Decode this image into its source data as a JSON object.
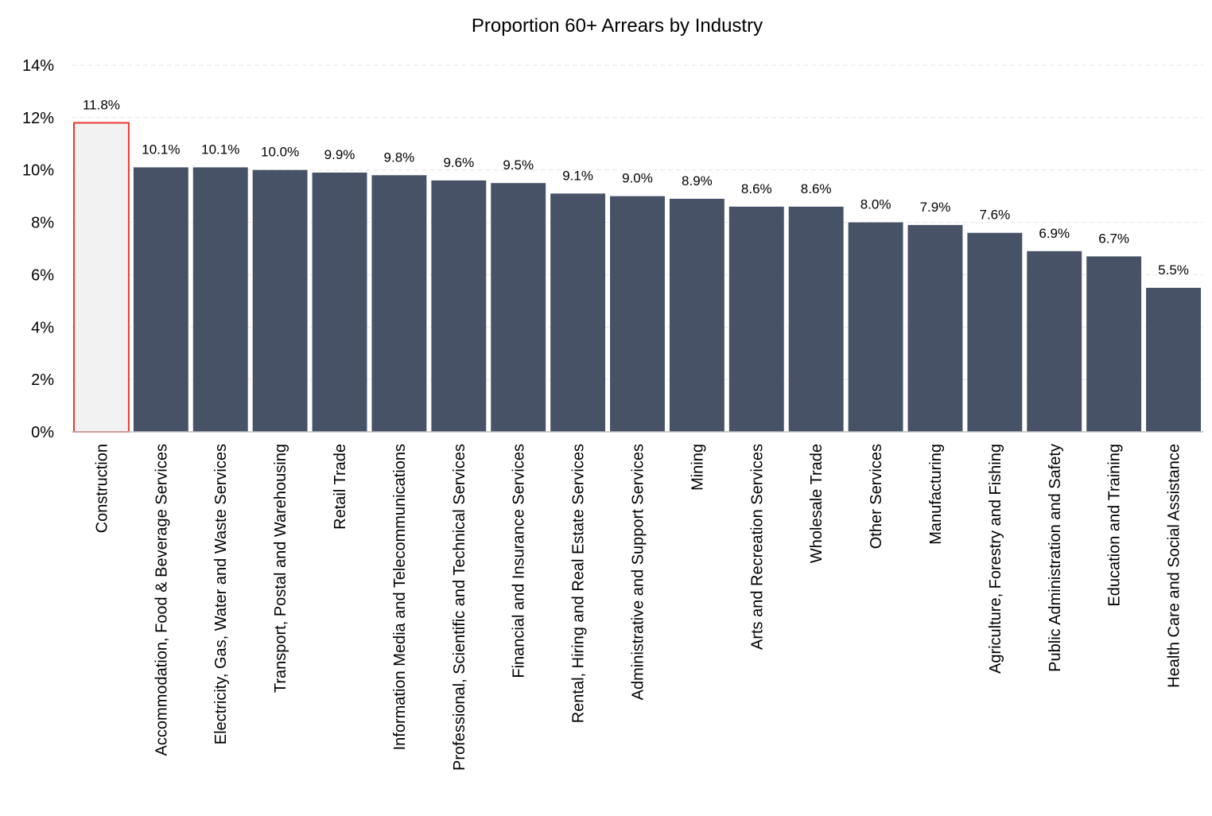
{
  "chart_data": {
    "type": "bar",
    "title": "Proportion 60+ Arrears by Industry",
    "xlabel": "",
    "ylabel": "",
    "ylim": [
      0,
      14
    ],
    "yticks": [
      "0%",
      "2%",
      "4%",
      "6%",
      "8%",
      "10%",
      "12%",
      "14%"
    ],
    "ytick_values": [
      0,
      2,
      4,
      6,
      8,
      10,
      12,
      14
    ],
    "grid": true,
    "legend": "none",
    "categories": [
      "Construction",
      "Accommodation, Food & Beverage Services",
      "Electricity, Gas, Water and Waste Services",
      "Transport, Postal and Warehousing",
      "Retail Trade",
      "Information Media and Telecommunications",
      "Professional, Scientific and Technical Services",
      "Financial and Insurance Services",
      "Rental, Hiring and Real Estate Services",
      "Administrative and Support Services",
      "Mining",
      "Arts and Recreation Services",
      "Wholesale Trade",
      "Other Services",
      "Manufacturing",
      "Agriculture, Forestry and Fishing",
      "Public Administration and Safety",
      "Education and Training",
      "Health Care and Social Assistance"
    ],
    "values": [
      11.8,
      10.1,
      10.1,
      10.0,
      9.9,
      9.8,
      9.6,
      9.5,
      9.1,
      9.0,
      8.9,
      8.6,
      8.6,
      8.0,
      7.9,
      7.6,
      6.9,
      6.7,
      5.5
    ],
    "data_labels": [
      "11.8%",
      "10.1%",
      "10.1%",
      "10.0%",
      "9.9%",
      "9.8%",
      "9.6%",
      "9.5%",
      "9.1%",
      "9.0%",
      "8.9%",
      "8.6%",
      "8.6%",
      "8.0%",
      "7.9%",
      "7.6%",
      "6.9%",
      "6.7%",
      "5.5%"
    ],
    "highlight_index": 0,
    "colors": {
      "bar": "#475267",
      "highlight_fill": "#f2f2f2",
      "highlight_stroke": "#e8392f"
    }
  }
}
